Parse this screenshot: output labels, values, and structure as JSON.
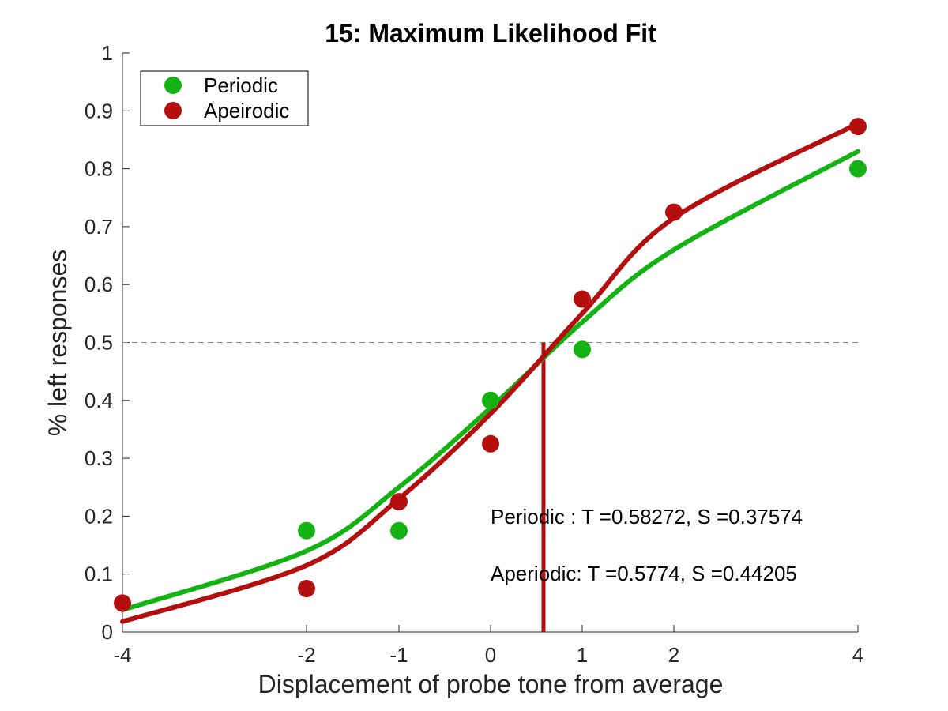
{
  "chart_data": {
    "type": "scatter",
    "title": "15: Maximum Likelihood Fit",
    "xlabel": "Displacement of probe tone from average",
    "ylabel": "% left responses",
    "xlim": [
      -4,
      4
    ],
    "ylim": [
      0,
      1
    ],
    "x_ticks": [
      -4,
      -2,
      -1,
      0,
      1,
      2,
      4
    ],
    "x_tick_labels": [
      "-4",
      "-2",
      "-1",
      "0",
      "1",
      "2",
      "4"
    ],
    "y_ticks": [
      0,
      0.1,
      0.2,
      0.3,
      0.4,
      0.5,
      0.6,
      0.7,
      0.8,
      0.9,
      1
    ],
    "y_tick_labels": [
      "0",
      "0.1",
      "0.2",
      "0.3",
      "0.4",
      "0.5",
      "0.6",
      "0.7",
      "0.8",
      "0.9",
      "1"
    ],
    "x_scale_note": "x axis tick spacing is non-linear (inner ticks -2..2 equally spaced, outer -4 and 4 compressed)",
    "grid": false,
    "legend_position": "top-left",
    "reference_line_y": 0.5,
    "threshold_line_x": 0.5774,
    "series": [
      {
        "name": "Periodic",
        "color": "#12b312",
        "x": [
          -4,
          -2,
          -1,
          0,
          1,
          2,
          4
        ],
        "y": [
          null,
          0.175,
          0.175,
          0.4,
          0.488,
          null,
          0.8
        ],
        "fit": {
          "T": 0.58272,
          "S": 0.37574
        },
        "fit_curve_y": [
          0.038,
          0.14,
          0.25,
          0.387,
          0.535,
          0.66,
          0.83
        ]
      },
      {
        "name": "Apeirodic",
        "color": "#b30f0f",
        "x": [
          -4,
          -2,
          -1,
          0,
          1,
          2,
          4
        ],
        "y": [
          0.05,
          0.075,
          0.225,
          0.325,
          0.575,
          0.725,
          0.873
        ],
        "fit": {
          "T": 0.5774,
          "S": 0.44205
        },
        "fit_curve_y": [
          0.018,
          0.115,
          0.23,
          0.377,
          0.55,
          0.715,
          0.878
        ]
      }
    ],
    "annotations": [
      "Periodic  : T =0.58272, S =0.37574",
      "Aperiodic: T =0.5774, S =0.44205"
    ]
  }
}
